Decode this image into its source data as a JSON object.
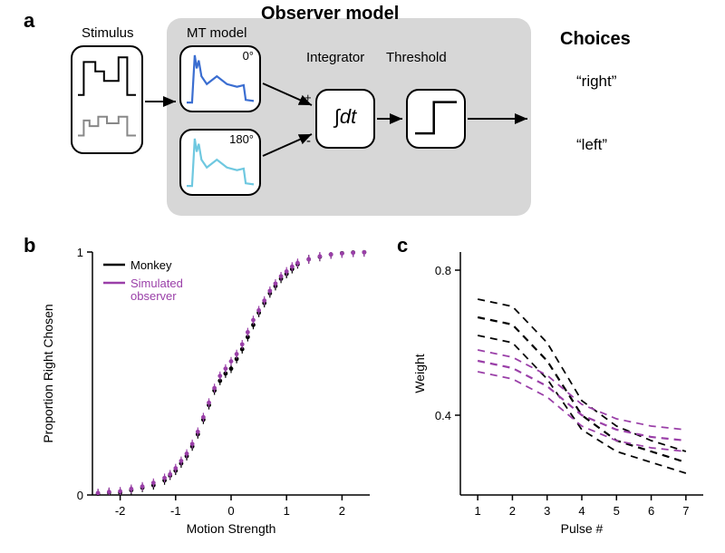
{
  "labels": {
    "a": "a",
    "b": "b",
    "c": "c",
    "stimulus": "Stimulus",
    "observer_model": "Observer model",
    "mt_model": "MT model",
    "integrator": "Integrator",
    "threshold": "Threshold",
    "choices": "Choices",
    "choice_right": "“right”",
    "choice_left": "“left”",
    "deg0": "0°",
    "deg180": "180°"
  },
  "colors": {
    "monkey": "#000000",
    "simulated": "#9a3fa8",
    "mt_curve1": "#3b6ed1",
    "mt_curve2": "#6fc8e0",
    "bg_gray": "#d7d7d7",
    "axis": "#000000"
  },
  "panel_b": {
    "title": "",
    "xlabel": "Motion Strength",
    "ylabel": "Proportion Right Chosen",
    "xlim": [
      -2.5,
      2.5
    ],
    "ylim": [
      0,
      1
    ],
    "xticks": [
      -2,
      -1,
      0,
      1,
      2
    ],
    "yticks": [
      0,
      1
    ],
    "legend": {
      "monkey": "Monkey",
      "sim": "Simulated\nobserver"
    },
    "series": {
      "monkey": {
        "color": "#000000",
        "points": [
          [
            -2.4,
            0.005
          ],
          [
            -2.2,
            0.01
          ],
          [
            -2.0,
            0.01
          ],
          [
            -1.8,
            0.02
          ],
          [
            -1.6,
            0.03
          ],
          [
            -1.4,
            0.04
          ],
          [
            -1.2,
            0.06
          ],
          [
            -1.1,
            0.08
          ],
          [
            -1.0,
            0.1
          ],
          [
            -0.9,
            0.13
          ],
          [
            -0.8,
            0.16
          ],
          [
            -0.7,
            0.2
          ],
          [
            -0.6,
            0.25
          ],
          [
            -0.5,
            0.31
          ],
          [
            -0.4,
            0.37
          ],
          [
            -0.3,
            0.43
          ],
          [
            -0.2,
            0.47
          ],
          [
            -0.1,
            0.5
          ],
          [
            0.0,
            0.52
          ],
          [
            0.1,
            0.56
          ],
          [
            0.2,
            0.6
          ],
          [
            0.3,
            0.65
          ],
          [
            0.4,
            0.7
          ],
          [
            0.5,
            0.75
          ],
          [
            0.6,
            0.79
          ],
          [
            0.7,
            0.83
          ],
          [
            0.8,
            0.86
          ],
          [
            0.9,
            0.89
          ],
          [
            1.0,
            0.91
          ],
          [
            1.1,
            0.93
          ],
          [
            1.2,
            0.95
          ],
          [
            1.4,
            0.97
          ],
          [
            1.6,
            0.98
          ],
          [
            1.8,
            0.99
          ],
          [
            2.0,
            0.995
          ],
          [
            2.2,
            0.998
          ],
          [
            2.4,
            0.999
          ]
        ],
        "err": 0.018
      },
      "sim": {
        "color": "#9a3fa8",
        "points": [
          [
            -2.4,
            0.008
          ],
          [
            -2.2,
            0.013
          ],
          [
            -2.0,
            0.015
          ],
          [
            -1.8,
            0.025
          ],
          [
            -1.6,
            0.035
          ],
          [
            -1.4,
            0.05
          ],
          [
            -1.2,
            0.07
          ],
          [
            -1.1,
            0.085
          ],
          [
            -1.0,
            0.11
          ],
          [
            -0.9,
            0.14
          ],
          [
            -0.8,
            0.17
          ],
          [
            -0.7,
            0.21
          ],
          [
            -0.6,
            0.26
          ],
          [
            -0.5,
            0.32
          ],
          [
            -0.4,
            0.38
          ],
          [
            -0.3,
            0.44
          ],
          [
            -0.2,
            0.49
          ],
          [
            -0.1,
            0.52
          ],
          [
            0.0,
            0.55
          ],
          [
            0.1,
            0.58
          ],
          [
            0.2,
            0.62
          ],
          [
            0.3,
            0.67
          ],
          [
            0.4,
            0.72
          ],
          [
            0.5,
            0.76
          ],
          [
            0.6,
            0.8
          ],
          [
            0.7,
            0.84
          ],
          [
            0.8,
            0.87
          ],
          [
            0.9,
            0.9
          ],
          [
            1.0,
            0.92
          ],
          [
            1.1,
            0.94
          ],
          [
            1.2,
            0.955
          ],
          [
            1.4,
            0.97
          ],
          [
            1.6,
            0.982
          ],
          [
            1.8,
            0.99
          ],
          [
            2.0,
            0.994
          ],
          [
            2.2,
            0.997
          ],
          [
            2.4,
            0.999
          ]
        ],
        "err": 0.018
      }
    }
  },
  "panel_c": {
    "xlabel": "Pulse #",
    "ylabel": "Weight",
    "xlim": [
      0.5,
      7.5
    ],
    "ylim": [
      0.18,
      0.85
    ],
    "xticks": [
      1,
      2,
      3,
      4,
      5,
      6,
      7
    ],
    "yticks": [
      0.4,
      0.8
    ],
    "series": {
      "monkey": {
        "color": "#000000",
        "dash": "8,6",
        "line_width": 2.2,
        "mean": [
          [
            1,
            0.67
          ],
          [
            2,
            0.65
          ],
          [
            3,
            0.55
          ],
          [
            4,
            0.4
          ],
          [
            5,
            0.33
          ],
          [
            6,
            0.3
          ],
          [
            7,
            0.27
          ]
        ],
        "lo": [
          [
            1,
            0.62
          ],
          [
            2,
            0.6
          ],
          [
            3,
            0.5
          ],
          [
            4,
            0.36
          ],
          [
            5,
            0.3
          ],
          [
            6,
            0.27
          ],
          [
            7,
            0.24
          ]
        ],
        "hi": [
          [
            1,
            0.72
          ],
          [
            2,
            0.7
          ],
          [
            3,
            0.6
          ],
          [
            4,
            0.44
          ],
          [
            5,
            0.37
          ],
          [
            6,
            0.33
          ],
          [
            7,
            0.3
          ]
        ]
      },
      "sim": {
        "color": "#9a3fa8",
        "dash": "8,6",
        "line_width": 2.2,
        "mean": [
          [
            1,
            0.55
          ],
          [
            2,
            0.53
          ],
          [
            3,
            0.48
          ],
          [
            4,
            0.4
          ],
          [
            5,
            0.36
          ],
          [
            6,
            0.34
          ],
          [
            7,
            0.33
          ]
        ],
        "lo": [
          [
            1,
            0.52
          ],
          [
            2,
            0.5
          ],
          [
            3,
            0.45
          ],
          [
            4,
            0.37
          ],
          [
            5,
            0.33
          ],
          [
            6,
            0.31
          ],
          [
            7,
            0.3
          ]
        ],
        "hi": [
          [
            1,
            0.58
          ],
          [
            2,
            0.56
          ],
          [
            3,
            0.51
          ],
          [
            4,
            0.43
          ],
          [
            5,
            0.39
          ],
          [
            6,
            0.37
          ],
          [
            7,
            0.36
          ]
        ]
      }
    }
  },
  "panel_a": {
    "stimulus_curve_top": [
      [
        0,
        0.55
      ],
      [
        0.1,
        0.55
      ],
      [
        0.1,
        0.9
      ],
      [
        0.3,
        0.9
      ],
      [
        0.3,
        0.8
      ],
      [
        0.45,
        0.8
      ],
      [
        0.45,
        0.7
      ],
      [
        0.7,
        0.7
      ],
      [
        0.7,
        0.95
      ],
      [
        0.85,
        0.95
      ],
      [
        0.85,
        0.55
      ],
      [
        1,
        0.55
      ]
    ],
    "stimulus_curve_bot": [
      [
        0,
        0.12
      ],
      [
        0.1,
        0.12
      ],
      [
        0.1,
        0.28
      ],
      [
        0.2,
        0.28
      ],
      [
        0.2,
        0.22
      ],
      [
        0.35,
        0.22
      ],
      [
        0.35,
        0.32
      ],
      [
        0.5,
        0.32
      ],
      [
        0.5,
        0.25
      ],
      [
        0.7,
        0.25
      ],
      [
        0.7,
        0.32
      ],
      [
        0.85,
        0.32
      ],
      [
        0.85,
        0.12
      ],
      [
        1,
        0.12
      ]
    ],
    "mt_curve": [
      [
        0,
        0.05
      ],
      [
        0.08,
        0.05
      ],
      [
        0.12,
        0.95
      ],
      [
        0.15,
        0.7
      ],
      [
        0.18,
        0.85
      ],
      [
        0.22,
        0.55
      ],
      [
        0.3,
        0.4
      ],
      [
        0.45,
        0.55
      ],
      [
        0.6,
        0.4
      ],
      [
        0.75,
        0.35
      ],
      [
        0.85,
        0.38
      ],
      [
        0.88,
        0.1
      ],
      [
        1,
        0.08
      ]
    ],
    "integrator_text": "∫dt",
    "threshold_curve": [
      [
        0,
        0.15
      ],
      [
        0.45,
        0.15
      ],
      [
        0.45,
        0.9
      ],
      [
        1,
        0.9
      ]
    ]
  }
}
